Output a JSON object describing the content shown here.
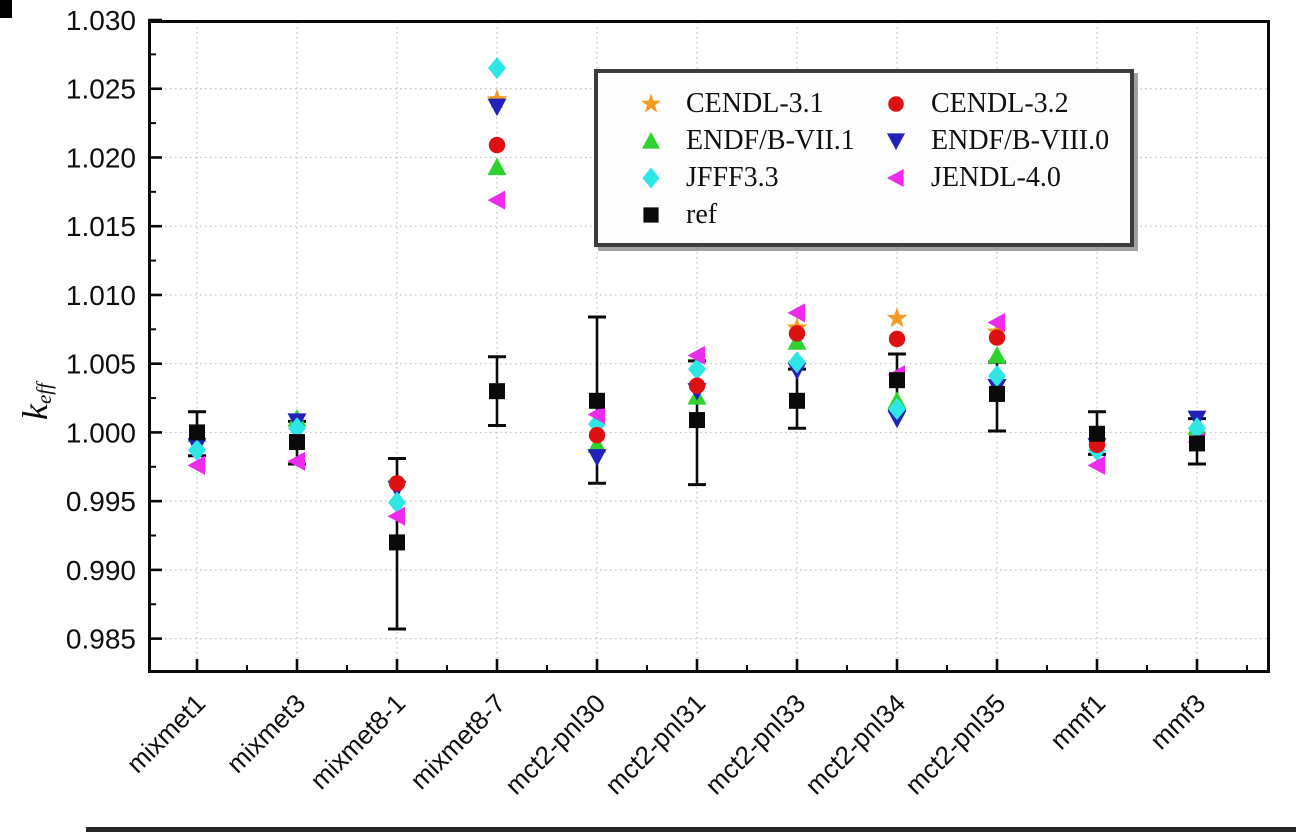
{
  "chart_data": {
    "type": "scatter",
    "title": "",
    "xlabel": "",
    "ylabel_main": "k",
    "ylabel_sub": "eff",
    "ylim": [
      0.9825,
      1.03
    ],
    "yticks": [
      0.985,
      0.99,
      0.995,
      1.0,
      1.005,
      1.01,
      1.015,
      1.02,
      1.025,
      1.03
    ],
    "grid": "dotted, both directions, at major ticks",
    "legend_position": "top-center, framed box, 2 columns",
    "categories": [
      "mixmet1",
      "mixmet3",
      "mixmet8-1",
      "mixmet8-7",
      "mct2-pnl30",
      "mct2-pnl31",
      "mct2-pnl33",
      "mct2-pnl34",
      "mct2-pnl35",
      "mmf1",
      "mmf3"
    ],
    "series": [
      {
        "name": "CENDL-3.1",
        "marker": "star",
        "color": "#f59a23",
        "values": [
          null,
          null,
          null,
          1.0242,
          null,
          null,
          1.0076,
          1.0083,
          1.0073,
          null,
          null
        ]
      },
      {
        "name": "CENDL-3.2",
        "marker": "circle",
        "color": "#dd1111",
        "values": [
          null,
          null,
          0.9963,
          1.0209,
          0.9998,
          1.0034,
          1.0072,
          1.0068,
          1.0069,
          0.9991,
          null
        ]
      },
      {
        "name": "ENDF/B-VII.1",
        "marker": "triangle-up",
        "color": "#2ed32e",
        "values": [
          0.9999,
          1.001,
          null,
          1.0193,
          0.9991,
          1.0026,
          1.0066,
          1.0023,
          1.0056,
          null,
          1.0004
        ]
      },
      {
        "name": "ENDF/B-VIII.0",
        "marker": "triangle-down",
        "color": "#2222bb",
        "values": [
          0.999,
          1.0008,
          0.9959,
          1.0237,
          0.9982,
          1.003,
          1.0045,
          1.001,
          1.0033,
          0.999,
          1.001
        ]
      },
      {
        "name": "JFFF3.3",
        "marker": "diamond",
        "color": "#2ee6e6",
        "values": [
          0.9987,
          1.0003,
          0.9949,
          1.0265,
          1.0006,
          1.0046,
          1.0051,
          1.0017,
          1.0041,
          0.9987,
          1.0003
        ]
      },
      {
        "name": "JENDL-4.0",
        "marker": "triangle-left",
        "color": "#ec2bec",
        "values": [
          0.9976,
          0.9979,
          0.9939,
          1.0169,
          1.0013,
          1.0056,
          1.0087,
          1.0042,
          1.008,
          0.9976,
          0.9993
        ]
      },
      {
        "name": "ref",
        "marker": "square",
        "color": "#0a0a0a",
        "values": [
          1.0,
          0.9993,
          0.992,
          1.003,
          1.0023,
          1.0009,
          1.0023,
          1.0038,
          1.0028,
          0.9999,
          0.9992
        ],
        "error_plus": [
          0.0015,
          0.0015,
          0.0061,
          0.0025,
          0.0061,
          0.0043,
          0.0023,
          0.0019,
          0.0023,
          0.0016,
          0.0018
        ],
        "error_minus": [
          0.0017,
          0.0016,
          0.0063,
          0.0025,
          0.006,
          0.0047,
          0.002,
          0.0021,
          0.0027,
          0.0015,
          0.0015
        ]
      }
    ]
  },
  "legend": {
    "column_major_order": [
      0,
      2,
      4,
      6,
      1,
      3,
      5
    ]
  },
  "colors": {
    "grid": "#bfbfbf",
    "axis": "#0a0a0a",
    "background": "#ffffff"
  }
}
